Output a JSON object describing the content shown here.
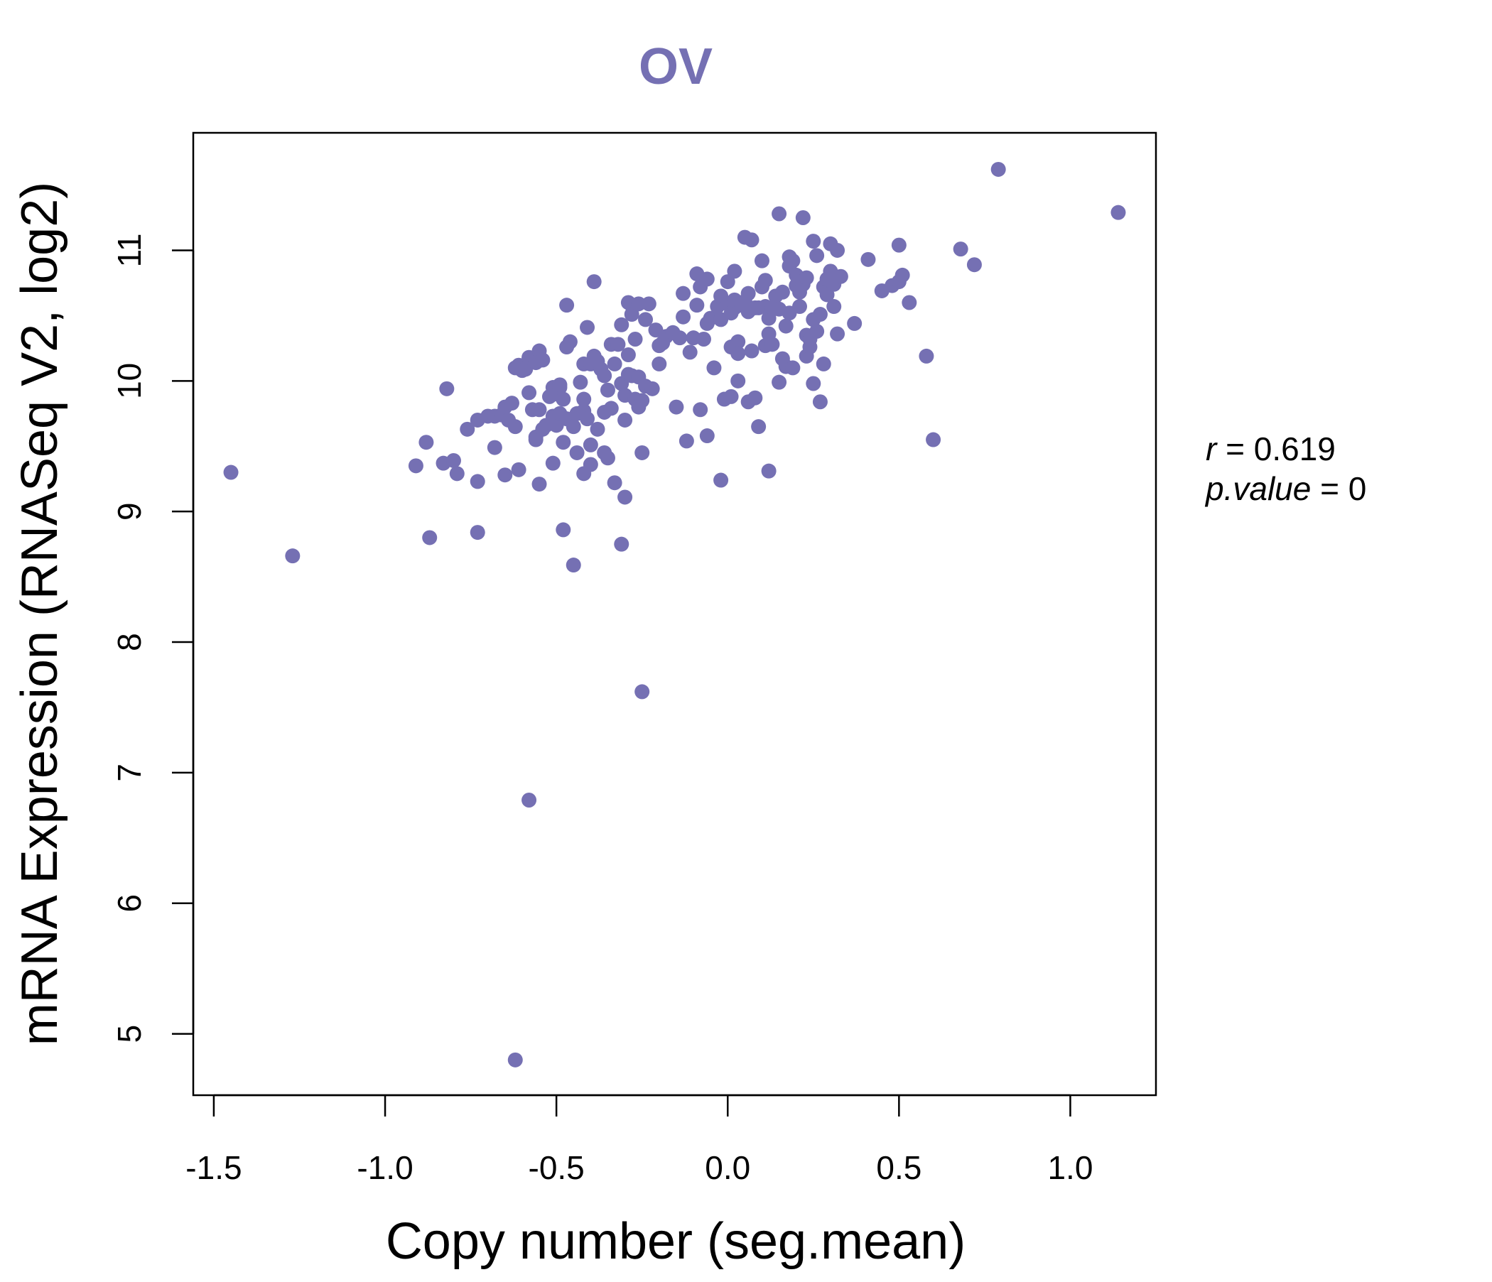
{
  "chart_data": {
    "type": "scatter",
    "title": "OV",
    "xlabel": "Copy number (seg.mean)",
    "ylabel": "mRNA Expression (RNASeq V2, log2)",
    "xlim": [
      -1.56,
      1.25
    ],
    "ylim": [
      4.53,
      11.9
    ],
    "x_ticks": [
      -1.5,
      -1.0,
      -0.5,
      0.0,
      0.5,
      1.0
    ],
    "x_tick_labels": [
      "-1.5",
      "-1.0",
      "-0.5",
      "0.0",
      "0.5",
      "1.0"
    ],
    "y_ticks": [
      5,
      6,
      7,
      8,
      9,
      10,
      11
    ],
    "y_tick_labels": [
      "5",
      "6",
      "7",
      "8",
      "9",
      "10",
      "11"
    ],
    "grid": false,
    "legend": "none",
    "annotations": {
      "r_label": "r",
      "r_value": "0.619",
      "p_label": "p.value",
      "p_value": "0"
    },
    "colors": {
      "points": "#7570b3",
      "title": "#7570b3",
      "axis": "#000000"
    },
    "series": [
      {
        "points": [
          [
            -1.45,
            9.3
          ],
          [
            -1.27,
            8.66
          ],
          [
            -0.91,
            9.35
          ],
          [
            -0.88,
            9.53
          ],
          [
            -0.87,
            8.8
          ],
          [
            -0.83,
            9.37
          ],
          [
            -0.82,
            9.94
          ],
          [
            -0.8,
            9.39
          ],
          [
            -0.79,
            9.29
          ],
          [
            -0.76,
            9.63
          ],
          [
            -0.73,
            9.7
          ],
          [
            -0.73,
            9.23
          ],
          [
            -0.73,
            8.84
          ],
          [
            -0.7,
            9.73
          ],
          [
            -0.68,
            9.73
          ],
          [
            -0.68,
            9.49
          ],
          [
            -0.66,
            9.74
          ],
          [
            -0.65,
            9.28
          ],
          [
            -0.65,
            9.8
          ],
          [
            -0.64,
            9.7
          ],
          [
            -0.63,
            9.83
          ],
          [
            -0.62,
            10.1
          ],
          [
            -0.62,
            9.65
          ],
          [
            -0.61,
            9.32
          ],
          [
            -0.61,
            10.12
          ],
          [
            -0.6,
            10.08
          ],
          [
            -0.59,
            10.09
          ],
          [
            -0.58,
            10.18
          ],
          [
            -0.58,
            6.79
          ],
          [
            -0.58,
            9.91
          ],
          [
            -0.57,
            9.78
          ],
          [
            -0.56,
            10.14
          ],
          [
            -0.56,
            9.55
          ],
          [
            -0.56,
            9.57
          ],
          [
            -0.55,
            10.23
          ],
          [
            -0.55,
            9.21
          ],
          [
            -0.55,
            9.78
          ],
          [
            -0.54,
            9.63
          ],
          [
            -0.54,
            10.16
          ],
          [
            -0.53,
            9.66
          ],
          [
            -0.52,
            9.88
          ],
          [
            -0.51,
            9.95
          ],
          [
            -0.51,
            9.37
          ],
          [
            -0.51,
            9.73
          ],
          [
            -0.5,
            9.9
          ],
          [
            -0.5,
            9.66
          ],
          [
            -0.49,
            9.95
          ],
          [
            -0.49,
            9.75
          ],
          [
            -0.49,
            9.97
          ],
          [
            -0.48,
            9.86
          ],
          [
            -0.48,
            8.86
          ],
          [
            -0.48,
            9.53
          ],
          [
            -0.47,
            10.58
          ],
          [
            -0.47,
            10.26
          ],
          [
            -0.47,
            9.71
          ],
          [
            -0.46,
            10.3
          ],
          [
            -0.45,
            9.65
          ],
          [
            -0.45,
            8.59
          ],
          [
            -0.44,
            9.45
          ],
          [
            -0.44,
            9.75
          ],
          [
            -0.43,
            9.99
          ],
          [
            -0.42,
            9.77
          ],
          [
            -0.42,
            9.86
          ],
          [
            -0.42,
            9.29
          ],
          [
            -0.42,
            10.13
          ],
          [
            -0.41,
            10.41
          ],
          [
            -0.41,
            9.71
          ],
          [
            -0.4,
            9.51
          ],
          [
            -0.4,
            9.36
          ],
          [
            -0.4,
            10.13
          ],
          [
            -0.39,
            10.76
          ],
          [
            -0.39,
            10.19
          ],
          [
            -0.38,
            9.63
          ],
          [
            -0.38,
            10.15
          ],
          [
            -0.37,
            10.09
          ],
          [
            -0.36,
            10.04
          ],
          [
            -0.36,
            9.76
          ],
          [
            -0.36,
            9.45
          ],
          [
            -0.35,
            9.41
          ],
          [
            -0.35,
            9.93
          ],
          [
            -0.34,
            10.28
          ],
          [
            -0.34,
            9.79
          ],
          [
            -0.33,
            10.13
          ],
          [
            -0.33,
            9.22
          ],
          [
            -0.32,
            10.28
          ],
          [
            -0.31,
            9.98
          ],
          [
            -0.31,
            8.75
          ],
          [
            -0.31,
            10.43
          ],
          [
            -0.3,
            9.11
          ],
          [
            -0.3,
            9.7
          ],
          [
            -0.3,
            9.89
          ],
          [
            -0.29,
            10.6
          ],
          [
            -0.29,
            10.2
          ],
          [
            -0.29,
            10.05
          ],
          [
            -0.28,
            10.04
          ],
          [
            -0.28,
            10.51
          ],
          [
            -0.27,
            9.86
          ],
          [
            -0.27,
            10.32
          ],
          [
            -0.26,
            9.8
          ],
          [
            -0.26,
            10.59
          ],
          [
            -0.26,
            10.03
          ],
          [
            -0.25,
            7.62
          ],
          [
            -0.25,
            9.45
          ],
          [
            -0.25,
            9.85
          ],
          [
            -0.24,
            10.47
          ],
          [
            -0.24,
            9.96
          ],
          [
            -0.23,
            10.59
          ],
          [
            -0.22,
            9.94
          ],
          [
            -0.21,
            10.39
          ],
          [
            -0.2,
            10.13
          ],
          [
            -0.2,
            10.27
          ],
          [
            -0.19,
            10.29
          ],
          [
            -0.18,
            10.34
          ],
          [
            -0.16,
            10.37
          ],
          [
            -0.15,
            9.8
          ],
          [
            -0.14,
            10.33
          ],
          [
            -0.13,
            10.49
          ],
          [
            -0.13,
            10.67
          ],
          [
            -0.12,
            9.54
          ],
          [
            -0.11,
            10.22
          ],
          [
            -0.1,
            10.33
          ],
          [
            -0.09,
            10.58
          ],
          [
            -0.09,
            10.82
          ],
          [
            -0.08,
            10.72
          ],
          [
            -0.08,
            9.78
          ],
          [
            -0.07,
            10.32
          ],
          [
            -0.06,
            10.44
          ],
          [
            -0.06,
            10.78
          ],
          [
            -0.06,
            9.58
          ],
          [
            -0.05,
            10.48
          ],
          [
            -0.04,
            10.1
          ],
          [
            -0.03,
            10.57
          ],
          [
            -0.02,
            10.65
          ],
          [
            -0.02,
            10.47
          ],
          [
            -0.02,
            9.24
          ],
          [
            -0.01,
            9.86
          ],
          [
            0.0,
            10.59
          ],
          [
            0.0,
            10.76
          ],
          [
            0.01,
            10.52
          ],
          [
            0.01,
            10.26
          ],
          [
            0.01,
            9.88
          ],
          [
            0.02,
            10.56
          ],
          [
            0.02,
            10.84
          ],
          [
            0.02,
            10.62
          ],
          [
            0.03,
            10.3
          ],
          [
            0.03,
            10.0
          ],
          [
            0.03,
            10.21
          ],
          [
            0.04,
            10.58
          ],
          [
            0.05,
            10.61
          ],
          [
            0.05,
            11.1
          ],
          [
            0.06,
            10.67
          ],
          [
            0.06,
            9.84
          ],
          [
            0.06,
            10.53
          ],
          [
            0.07,
            10.23
          ],
          [
            0.07,
            11.08
          ],
          [
            0.08,
            10.56
          ],
          [
            0.08,
            9.87
          ],
          [
            0.09,
            10.56
          ],
          [
            0.09,
            9.65
          ],
          [
            0.1,
            10.92
          ],
          [
            0.1,
            10.72
          ],
          [
            0.11,
            10.57
          ],
          [
            0.11,
            10.27
          ],
          [
            0.11,
            10.77
          ],
          [
            0.12,
            9.31
          ],
          [
            0.12,
            10.48
          ],
          [
            0.12,
            10.36
          ],
          [
            0.13,
            10.56
          ],
          [
            0.13,
            10.28
          ],
          [
            0.14,
            10.65
          ],
          [
            0.15,
            11.28
          ],
          [
            0.15,
            10.55
          ],
          [
            0.15,
            9.99
          ],
          [
            0.16,
            10.68
          ],
          [
            0.16,
            10.17
          ],
          [
            0.17,
            10.42
          ],
          [
            0.17,
            10.11
          ],
          [
            0.18,
            10.88
          ],
          [
            0.18,
            10.95
          ],
          [
            0.18,
            10.52
          ],
          [
            0.19,
            10.92
          ],
          [
            0.19,
            10.1
          ],
          [
            0.2,
            10.81
          ],
          [
            0.2,
            10.73
          ],
          [
            0.21,
            10.57
          ],
          [
            0.21,
            10.68
          ],
          [
            0.22,
            11.25
          ],
          [
            0.22,
            10.74
          ],
          [
            0.23,
            10.79
          ],
          [
            0.23,
            10.35
          ],
          [
            0.23,
            10.19
          ],
          [
            0.24,
            10.26
          ],
          [
            0.24,
            10.32
          ],
          [
            0.25,
            11.07
          ],
          [
            0.25,
            9.98
          ],
          [
            0.25,
            10.47
          ],
          [
            0.26,
            10.96
          ],
          [
            0.26,
            10.38
          ],
          [
            0.27,
            10.51
          ],
          [
            0.27,
            9.84
          ],
          [
            0.28,
            10.72
          ],
          [
            0.28,
            10.13
          ],
          [
            0.29,
            10.78
          ],
          [
            0.29,
            10.66
          ],
          [
            0.3,
            11.05
          ],
          [
            0.3,
            10.84
          ],
          [
            0.31,
            10.74
          ],
          [
            0.31,
            10.57
          ],
          [
            0.32,
            11.0
          ],
          [
            0.32,
            10.36
          ],
          [
            0.33,
            10.8
          ],
          [
            0.37,
            10.44
          ],
          [
            0.41,
            10.93
          ],
          [
            0.45,
            10.69
          ],
          [
            0.48,
            10.73
          ],
          [
            0.5,
            11.04
          ],
          [
            0.5,
            10.76
          ],
          [
            0.51,
            10.81
          ],
          [
            0.53,
            10.6
          ],
          [
            0.58,
            10.19
          ],
          [
            0.6,
            9.55
          ],
          [
            0.68,
            11.01
          ],
          [
            0.72,
            10.89
          ],
          [
            0.79,
            11.62
          ],
          [
            1.14,
            11.29
          ],
          [
            -0.62,
            4.8
          ]
        ]
      }
    ]
  }
}
